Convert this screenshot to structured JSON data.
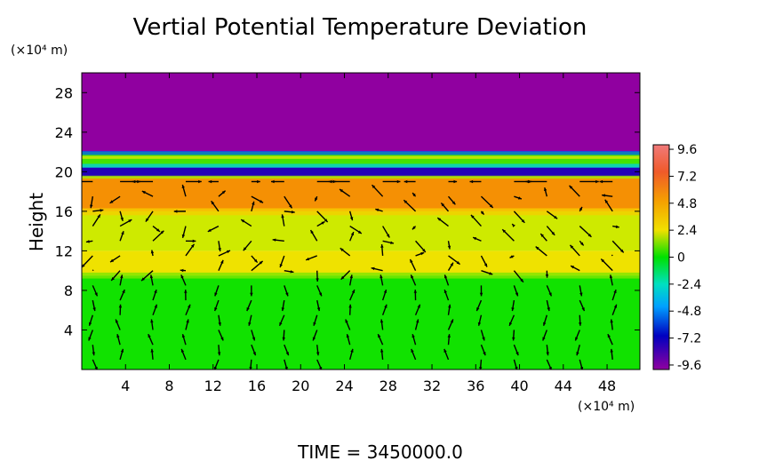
{
  "chart_data": {
    "type": "heatmap",
    "title": "Vertial Potential Temperature Deviation",
    "ylabel": "Height",
    "y_unit": "(×10⁴ m)",
    "x_unit": "(×10⁴ m)",
    "footer": "TIME  =  3450000.0",
    "x_ticks": [
      "4",
      "8",
      "12",
      "16",
      "20",
      "24",
      "28",
      "32",
      "36",
      "40",
      "44",
      "48"
    ],
    "x_tick_values": [
      4,
      8,
      12,
      16,
      20,
      24,
      28,
      32,
      36,
      40,
      44,
      48
    ],
    "y_ticks": [
      "4",
      "8",
      "12",
      "16",
      "20",
      "24",
      "28"
    ],
    "y_tick_values": [
      4,
      8,
      12,
      16,
      20,
      24,
      28
    ],
    "xlim": [
      0,
      51
    ],
    "ylim": [
      0,
      30
    ],
    "colorbar": {
      "ticks": [
        "9.6",
        "7.2",
        "4.8",
        "2.4",
        "0",
        "-2.4",
        "-4.8",
        "-7.2",
        "-9.6"
      ],
      "values": [
        9.6,
        7.2,
        4.8,
        2.4,
        0,
        -2.4,
        -4.8,
        -7.2,
        -9.6
      ],
      "range": [
        -10,
        10
      ]
    },
    "field_bands": [
      {
        "y0": 0,
        "y1": 9.5,
        "value": 0.2
      },
      {
        "y0": 9.5,
        "y1": 12,
        "value": 3.8
      },
      {
        "y0": 12,
        "y1": 16,
        "value": 2.6
      },
      {
        "y0": 16,
        "y1": 19.5,
        "value": 6.2
      },
      {
        "y0": 19.5,
        "y1": 20.5,
        "value": -8.5
      },
      {
        "y0": 20.5,
        "y1": 22,
        "value": 0.8
      },
      {
        "y0": 22,
        "y1": 30,
        "value": -10
      }
    ],
    "vectors": {
      "x": [
        1,
        3.5,
        6.5,
        9.5,
        12.5,
        15.5,
        18.5,
        21.5,
        24.5,
        27.5,
        30.5,
        33.5,
        36.5,
        39.5,
        42.5,
        45.5,
        48.5
      ],
      "y": [
        1,
        2.5,
        4,
        5.5,
        7,
        8.5,
        10,
        11.5,
        13,
        14.5,
        16,
        17.5,
        19
      ],
      "grid_values": "u,v per point"
    }
  }
}
